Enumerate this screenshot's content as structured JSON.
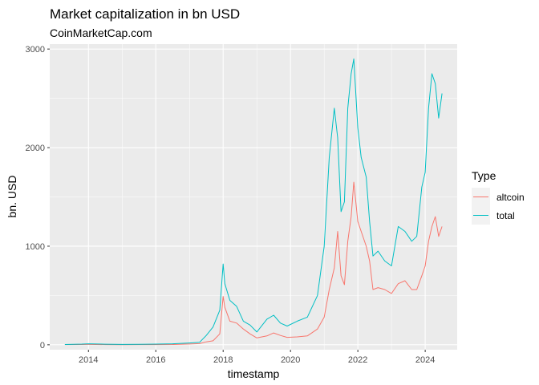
{
  "chart_data": {
    "type": "line",
    "title": "Market capitalization in bn USD",
    "subtitle": "CoinMarketCap.com",
    "xlabel": "timestamp",
    "ylabel": "bn. USD",
    "xlim": [
      2012.85,
      2024.95
    ],
    "ylim": [
      -50,
      3050
    ],
    "x_ticks": [
      2014,
      2016,
      2018,
      2020,
      2022,
      2024
    ],
    "y_ticks": [
      0,
      1000,
      2000,
      3000
    ],
    "grid": true,
    "legend": {
      "title": "Type",
      "position": "right"
    },
    "series": [
      {
        "name": "altcoin",
        "color": "#F8766D",
        "x": [
          2013.3,
          2013.8,
          2014.0,
          2014.5,
          2015.0,
          2015.5,
          2016.0,
          2016.5,
          2017.0,
          2017.3,
          2017.5,
          2017.7,
          2017.9,
          2018.0,
          2018.05,
          2018.2,
          2018.4,
          2018.6,
          2018.8,
          2019.0,
          2019.3,
          2019.5,
          2019.7,
          2019.9,
          2020.2,
          2020.5,
          2020.8,
          2021.0,
          2021.15,
          2021.3,
          2021.4,
          2021.5,
          2021.6,
          2021.7,
          2021.8,
          2021.88,
          2022.0,
          2022.1,
          2022.25,
          2022.35,
          2022.45,
          2022.6,
          2022.8,
          2023.0,
          2023.2,
          2023.4,
          2023.6,
          2023.75,
          2023.9,
          2024.0,
          2024.1,
          2024.2,
          2024.3,
          2024.4,
          2024.5
        ],
        "values": [
          2,
          3,
          4,
          2,
          1,
          2,
          2,
          3,
          8,
          12,
          30,
          40,
          110,
          490,
          380,
          240,
          220,
          160,
          110,
          70,
          90,
          120,
          95,
          75,
          80,
          90,
          160,
          280,
          560,
          780,
          1150,
          700,
          610,
          1050,
          1300,
          1650,
          1250,
          1150,
          1000,
          850,
          560,
          580,
          560,
          520,
          620,
          650,
          560,
          560,
          700,
          800,
          1050,
          1200,
          1300,
          1100,
          1200
        ]
      },
      {
        "name": "total",
        "color": "#00BFC4",
        "x": [
          2013.3,
          2013.8,
          2014.0,
          2014.5,
          2015.0,
          2015.5,
          2016.0,
          2016.5,
          2017.0,
          2017.3,
          2017.5,
          2017.7,
          2017.9,
          2018.0,
          2018.05,
          2018.2,
          2018.4,
          2018.6,
          2018.8,
          2019.0,
          2019.3,
          2019.5,
          2019.7,
          2019.9,
          2020.2,
          2020.5,
          2020.8,
          2021.0,
          2021.15,
          2021.3,
          2021.4,
          2021.5,
          2021.6,
          2021.7,
          2021.8,
          2021.88,
          2022.0,
          2022.1,
          2022.25,
          2022.35,
          2022.45,
          2022.6,
          2022.8,
          2023.0,
          2023.2,
          2023.4,
          2023.6,
          2023.75,
          2023.9,
          2024.0,
          2024.1,
          2024.2,
          2024.3,
          2024.4,
          2024.5
        ],
        "values": [
          3,
          7,
          10,
          6,
          4,
          5,
          7,
          10,
          18,
          25,
          95,
          180,
          350,
          820,
          620,
          450,
          390,
          240,
          200,
          130,
          260,
          300,
          220,
          190,
          240,
          280,
          500,
          1000,
          1900,
          2400,
          2100,
          1350,
          1450,
          2400,
          2750,
          2900,
          2200,
          1900,
          1700,
          1250,
          900,
          950,
          850,
          800,
          1200,
          1150,
          1050,
          1100,
          1600,
          1750,
          2400,
          2750,
          2650,
          2300,
          2550
        ]
      }
    ]
  }
}
